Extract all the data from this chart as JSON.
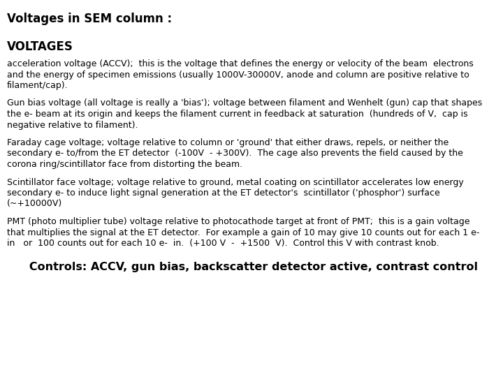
{
  "title": "Voltages in SEM column :",
  "section_header": "VOLTAGES",
  "paragraphs": [
    "acceleration voltage (ACCV);  this is the voltage that defines the energy or velocity of the beam  electrons\nand the energy of specimen emissions (usually 1000V-30000V, anode and column are positive relative to\nfilament/cap).",
    "Gun bias voltage (all voltage is really a 'bias'); voltage between filament and Wenhelt (gun) cap that shapes\nthe e- beam at its origin and keeps the filament current in feedback at saturation  (hundreds of V,  cap is\nnegative relative to filament).",
    "Faraday cage voltage; voltage relative to column or 'ground' that either draws, repels, or neither the\nsecondary e- to/from the ET detector  (-100V  - +300V).  The cage also prevents the field caused by the\ncorona ring/scintillator face from distorting the beam.",
    "Scintillator face voltage; voltage relative to ground, metal coating on scintillator accelerates low energy\nsecondary e- to induce light signal generation at the ET detector's  scintillator ('phosphor') surface\n(~+10000V)",
    "PMT (photo multiplier tube) voltage relative to photocathode target at front of PMT;  this is a gain voltage\nthat multiplies the signal at the ET detector.  For example a gain of 10 may give 10 counts out for each 1 e-\nin   or  100 counts out for each 10 e-  in.  (+100 V  -  +1500  V).  Control this V with contrast knob."
  ],
  "footer": "   Controls: ACCV, gun bias, backscatter detector active, contrast control",
  "background_color": "#ffffff",
  "text_color": "#000000"
}
